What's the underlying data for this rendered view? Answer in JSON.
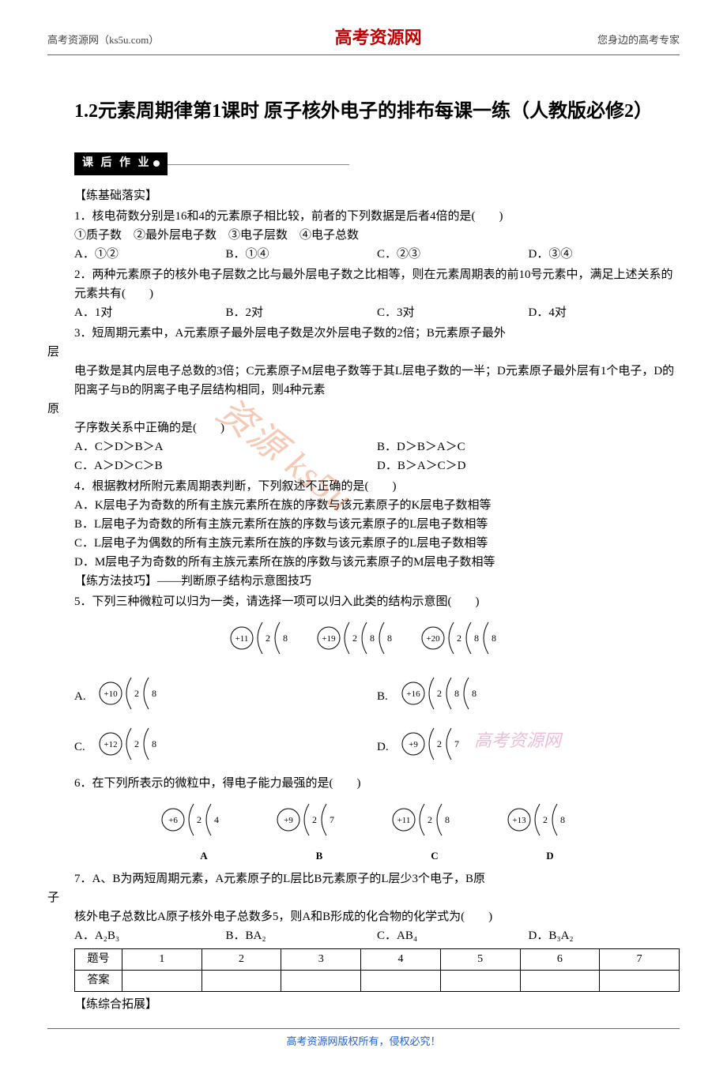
{
  "header": {
    "left": "高考资源网（ks5u.com）",
    "center": "高考资源网",
    "right": "您身边的高考专家"
  },
  "title": "1.2元素周期律第1课时 原子核外电子的排布每课一练（人教版必修2）",
  "banner": "课 后 作 业",
  "sub1": "【练基础落实】",
  "q1": {
    "text": "1．核电荷数分别是16和4的元素原子相比较，前者的下列数据是后者4倍的是(　　)",
    "items": "①质子数　②最外层电子数　③电子层数　④电子总数",
    "opts": [
      "A．①②",
      "B．①④",
      "C．②③",
      "D．③④"
    ]
  },
  "q2": {
    "text": "2．两种元素原子的核外电子层数之比与最外层电子数之比相等，则在元素周期表的前10号元素中，满足上述关系的元素共有(　　)",
    "opts": [
      "A．1对",
      "B．2对",
      "C．3对",
      "D．4对"
    ]
  },
  "q3": {
    "l1": "3．短周期元素中，A元素原子最外层电子数是次外层电子数的2倍；B元素原子最外",
    "l2": "层",
    "l3": "电子数是其内层电子总数的3倍；C元素原子M层电子数等于其L层电子数的一半；D元素原子最外层有1个电子，D的阳离子与B的阴离子电子层结构相同，则4种元素",
    "l4": "原",
    "l5": "子序数关系中正确的是(　　)",
    "opts": [
      "A．C＞D＞B＞A",
      "B．D＞B＞A＞C",
      "C．A＞D＞C＞B",
      "D．B＞A＞C＞D"
    ]
  },
  "q4": {
    "text": "4．根据教材所附元素周期表判断，下列叙述不正确的是(　　)",
    "a": "A．K层电子为奇数的所有主族元素所在族的序数与该元素原子的K层电子数相等",
    "b": "B．L层电子为奇数的所有主族元素所在族的序数与该元素原子的L层电子数相等",
    "c": "C．L层电子为偶数的所有主族元素所在族的序数与该元素原子的L层电子数相等",
    "d": "D．M层电子为奇数的所有主族元素所在族的序数与该元素原子的M层电子数相等"
  },
  "method": "【练方法技巧】——判断原子结构示意图技巧",
  "q5": {
    "text": "5．下列三种微粒可以归为一类，请选择一项可以归入此类的结构示意图(　　)",
    "top": [
      {
        "p": "+11",
        "shells": [
          "2",
          "8"
        ]
      },
      {
        "p": "+19",
        "shells": [
          "2",
          "8",
          "8"
        ]
      },
      {
        "p": "+20",
        "shells": [
          "2",
          "8",
          "8"
        ]
      }
    ],
    "opts": {
      "A": {
        "p": "+10",
        "shells": [
          "2",
          "8"
        ]
      },
      "B": {
        "p": "+16",
        "shells": [
          "2",
          "8",
          "8"
        ]
      },
      "C": {
        "p": "+12",
        "shells": [
          "2",
          "8"
        ]
      },
      "D": {
        "p": "+9",
        "shells": [
          "2",
          "7"
        ]
      }
    }
  },
  "q6": {
    "text": "6．在下列所表示的微粒中，得电子能力最强的是(　　)",
    "opts": {
      "A": {
        "p": "+6",
        "shells": [
          "2",
          "4"
        ]
      },
      "B": {
        "p": "+9",
        "shells": [
          "2",
          "7"
        ]
      },
      "C": {
        "p": "+11",
        "shells": [
          "2",
          "8"
        ]
      },
      "D": {
        "p": "+13",
        "shells": [
          "2",
          "8"
        ]
      }
    }
  },
  "q7": {
    "l1": "7．A、B为两短周期元素，A元素原子的L层比B元素原子的L层少3个电子，B原",
    "l2": "子",
    "l3": "核外电子总数比A原子核外电子总数多5，则A和B形成的化合物的化学式为(　　)",
    "opts": [
      "A．A₂B₃",
      "B．BA₂",
      "C．AB₄",
      "D．B₃A₂"
    ]
  },
  "table": {
    "row1_label": "题号",
    "cols": [
      "1",
      "2",
      "3",
      "4",
      "5",
      "6",
      "7"
    ],
    "row2_label": "答案"
  },
  "sub2": "【练综合拓展】",
  "footer": "高考资源网版权所有，侵权必究！",
  "watermarks": {
    "side": "高考资源网",
    "diag": "资源 ks5u"
  },
  "style": {
    "accent_red": "#c00000",
    "watermark_pink": "rgba(220,120,180,0.5)",
    "watermark_orange": "rgba(230,100,40,0.35)",
    "footer_color": "#2060d0",
    "arc_stroke": "#000000"
  }
}
